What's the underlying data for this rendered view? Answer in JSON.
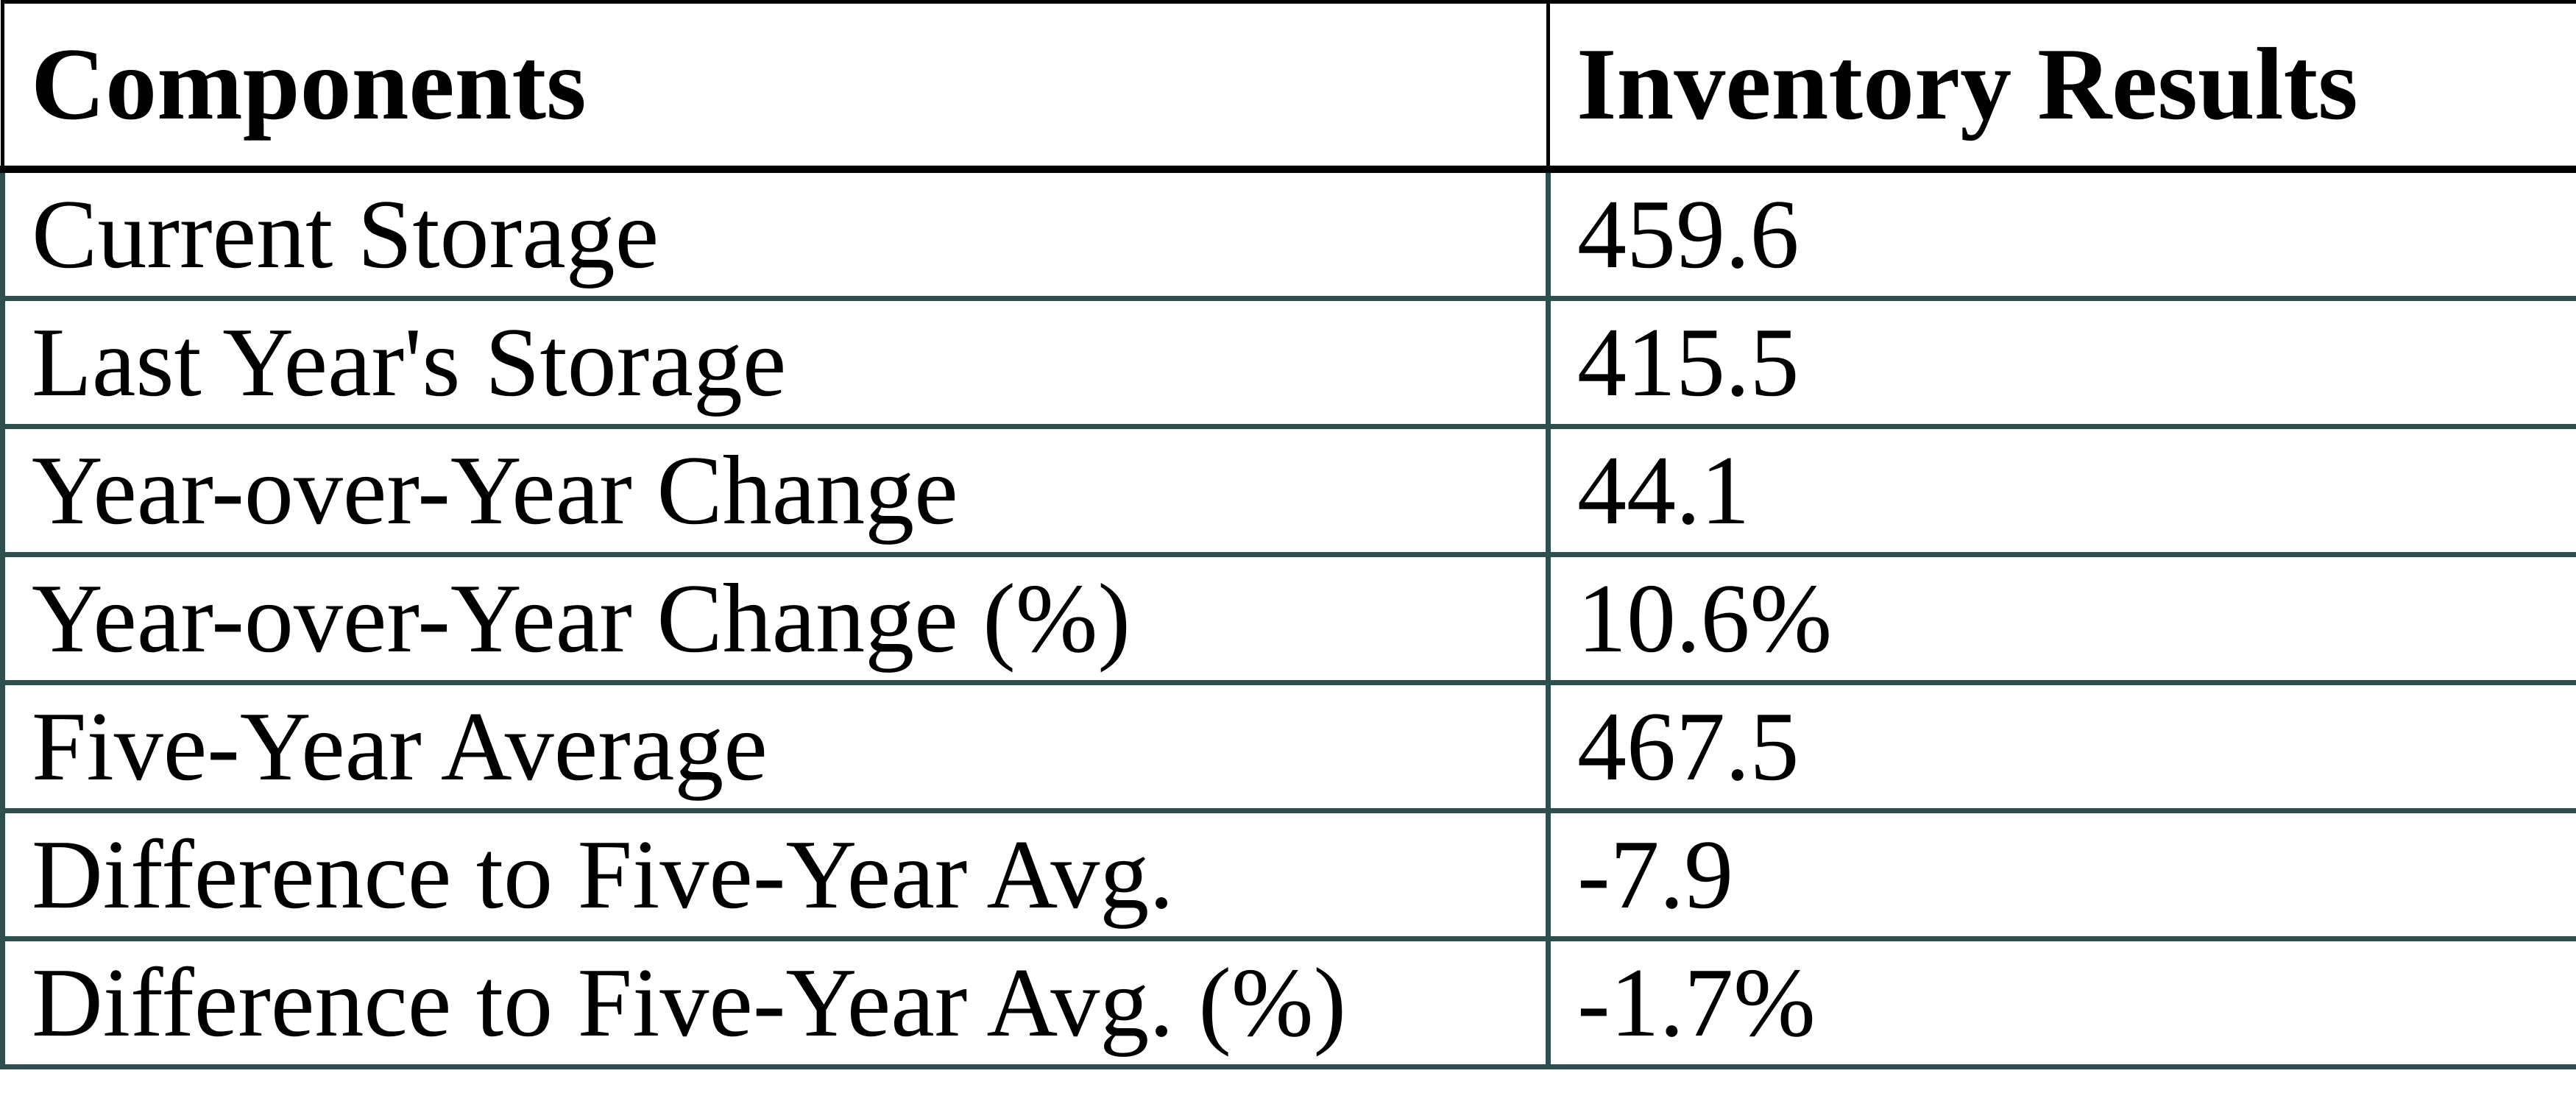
{
  "chart_data": {
    "type": "table",
    "columns": [
      "Components",
      "Inventory Results"
    ],
    "rows": [
      [
        "Current Storage",
        "459.6"
      ],
      [
        "Last Year's Storage",
        "415.5"
      ],
      [
        "Year-over-Year Change",
        "44.1"
      ],
      [
        "Year-over-Year Change (%)",
        "10.6%"
      ],
      [
        "Five-Year Average",
        "467.5"
      ],
      [
        "Difference to Five-Year Avg.",
        "-7.9"
      ],
      [
        "Difference to Five-Year Avg. (%)",
        "-1.7%"
      ]
    ],
    "layout": {
      "header_bold": true,
      "grid": "all-cell-borders",
      "column_split_ratio": 0.6
    }
  },
  "table": {
    "header": {
      "components": "Components",
      "results": "Inventory Results"
    },
    "rows": [
      {
        "label": "Current Storage",
        "value": "459.6"
      },
      {
        "label": "Last Year's Storage",
        "value": "415.5"
      },
      {
        "label": "Year-over-Year Change",
        "value": "44.1"
      },
      {
        "label": "Year-over-Year Change (%)",
        "value": "10.6%"
      },
      {
        "label": "Five-Year Average",
        "value": "467.5"
      },
      {
        "label": "Difference to Five-Year Avg.",
        "value": "-7.9"
      },
      {
        "label": "Difference to Five-Year Avg. (%)",
        "value": "-1.7%"
      }
    ],
    "colors": {
      "header_border": "#000000",
      "body_border": "#2f4f4f",
      "text": "#000000",
      "background": "#ffffff"
    }
  }
}
